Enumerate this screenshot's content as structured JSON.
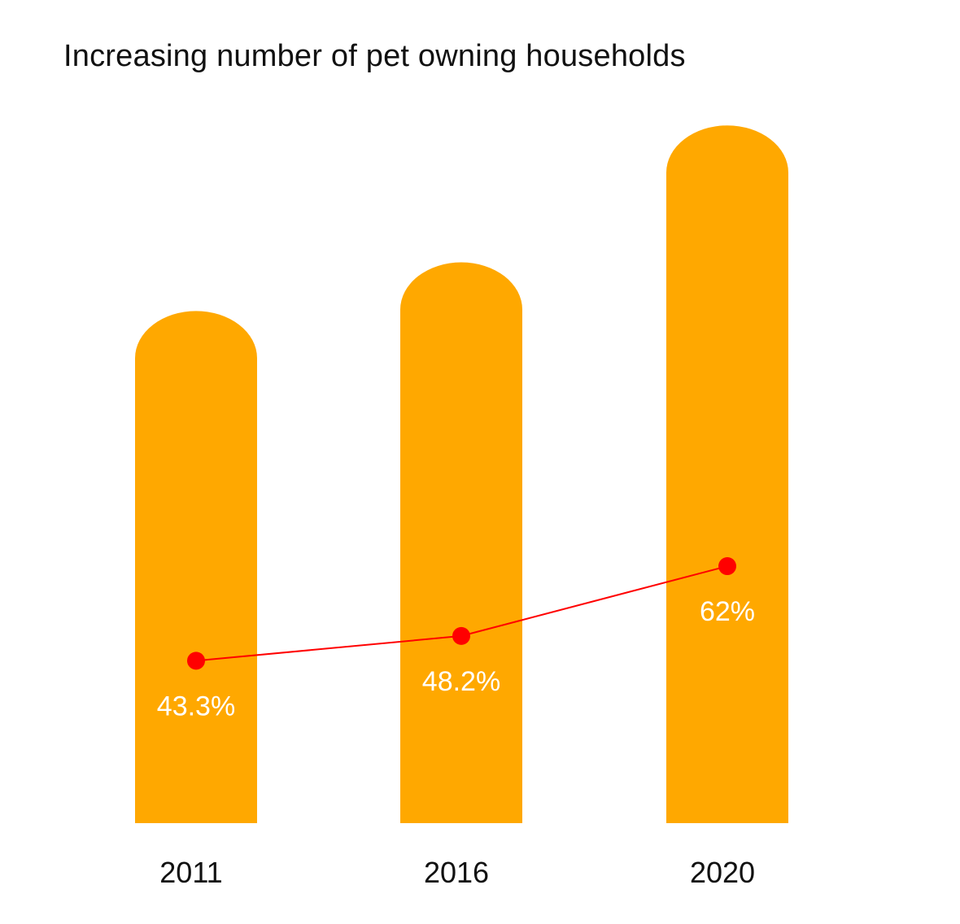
{
  "chart_data": {
    "type": "bar",
    "title": "Increasing number of pet owning households",
    "xlabel": "",
    "ylabel": "",
    "categories": [
      "2011",
      "2016",
      "2020"
    ],
    "values": [
      43.3,
      48.2,
      62
    ],
    "value_labels": [
      "43.3%",
      "48.2%",
      "62%"
    ],
    "unit": "%",
    "ylim": [
      0,
      100
    ],
    "grid": false,
    "overlay_line": true,
    "colors": {
      "bar": "#FFA800",
      "line": "#FF0000",
      "marker": "#FF0000",
      "value_label": "#FFFFFF",
      "tick_label": "#111111"
    }
  }
}
